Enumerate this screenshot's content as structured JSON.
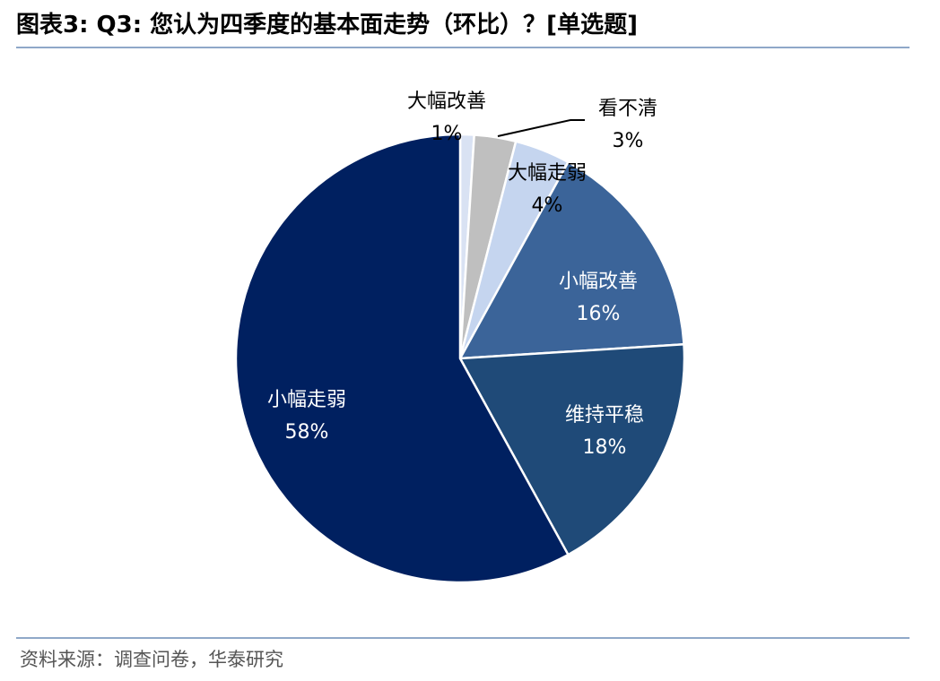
{
  "header": {
    "title": "图表3:  Q3:  您认为四季度的基本面走势（环比）？[单选题]"
  },
  "footer": {
    "source": "资料来源：调查问卷，华泰研究"
  },
  "chart_data": {
    "type": "pie",
    "start_angle_deg": 0,
    "direction": "clockwise",
    "slices": [
      {
        "label": "大幅改善",
        "value": 1,
        "value_label": "1%",
        "color": "#d9e2f3",
        "label_color": "#000000"
      },
      {
        "label": "看不清",
        "value": 3,
        "value_label": "3%",
        "color": "#bfbfbf",
        "label_color": "#000000"
      },
      {
        "label": "大幅走弱",
        "value": 4,
        "value_label": "4%",
        "color": "#c5d5ef",
        "label_color": "#000000"
      },
      {
        "label": "小幅改善",
        "value": 16,
        "value_label": "16%",
        "color": "#3b6499",
        "label_color": "#ffffff"
      },
      {
        "label": "维持平稳",
        "value": 18,
        "value_label": "18%",
        "color": "#1f4a78",
        "label_color": "#ffffff"
      },
      {
        "label": "小幅走弱",
        "value": 58,
        "value_label": "58%",
        "color": "#002060",
        "label_color": "#ffffff"
      }
    ]
  }
}
